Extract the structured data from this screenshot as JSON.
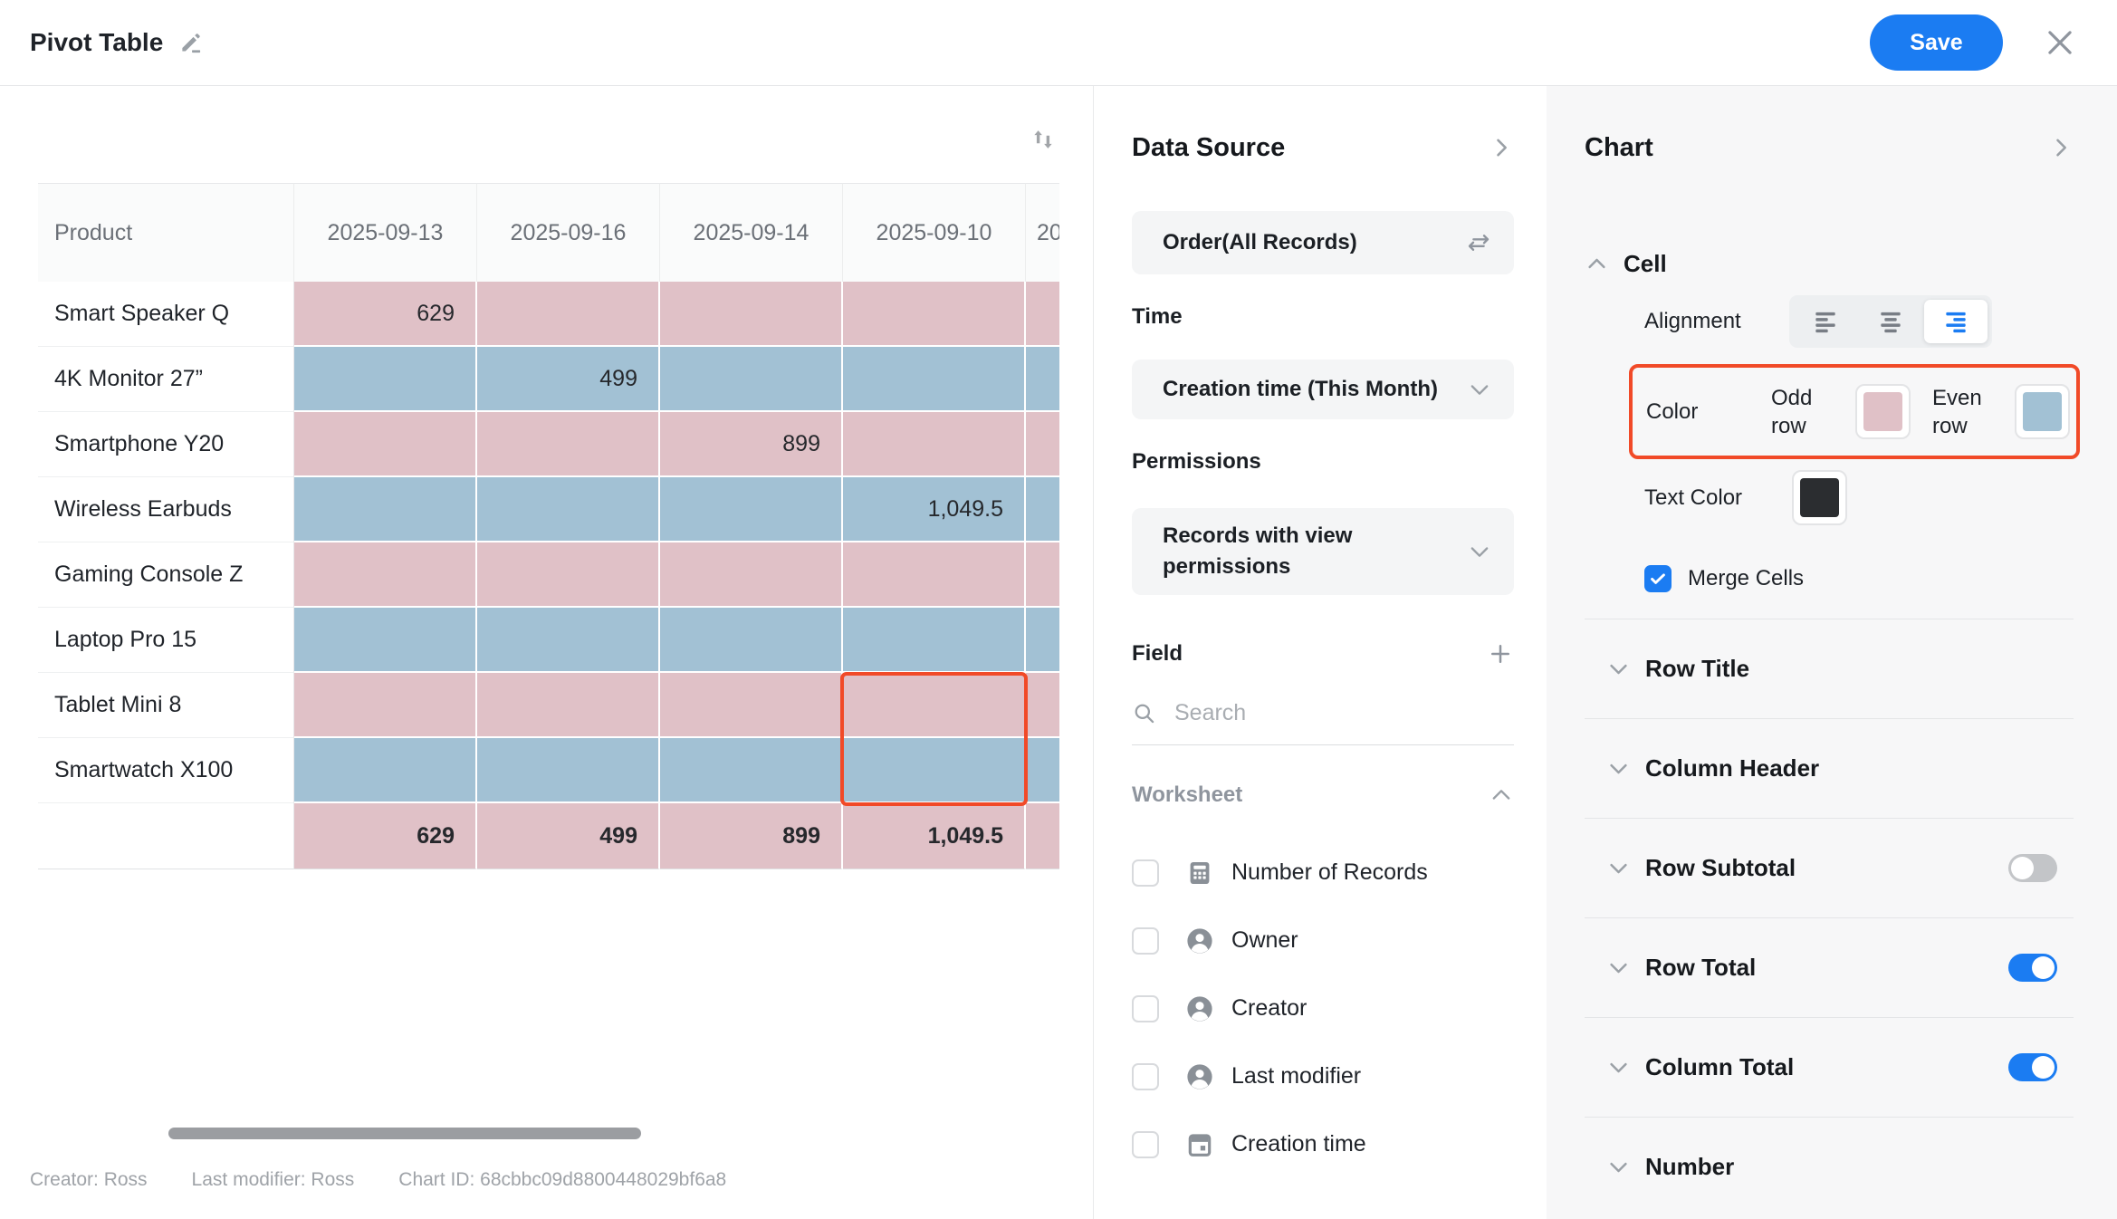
{
  "topbar": {
    "title": "Pivot Table",
    "save_label": "Save"
  },
  "canvas": {
    "table": {
      "product_header": "Product",
      "date_columns": [
        "2025-09-13",
        "2025-09-16",
        "2025-09-14",
        "2025-09-10",
        "20"
      ],
      "rows": [
        {
          "product": "Smart Speaker Q",
          "values": [
            "629",
            "",
            "",
            "",
            ""
          ]
        },
        {
          "product": "4K Monitor 27”",
          "values": [
            "",
            "499",
            "",
            "",
            ""
          ]
        },
        {
          "product": "Smartphone Y20",
          "values": [
            "",
            "",
            "899",
            "",
            ""
          ]
        },
        {
          "product": "Wireless Earbuds",
          "values": [
            "",
            "",
            "",
            "1,049.5",
            ""
          ]
        },
        {
          "product": "Gaming Console Z",
          "values": [
            "",
            "",
            "",
            "",
            ""
          ]
        },
        {
          "product": "Laptop Pro 15",
          "values": [
            "",
            "",
            "",
            "",
            ""
          ]
        },
        {
          "product": "Tablet Mini 8",
          "values": [
            "",
            "",
            "",
            "",
            ""
          ]
        },
        {
          "product": "Smartwatch X100",
          "values": [
            "",
            "",
            "",
            "",
            ""
          ]
        }
      ],
      "total_row": {
        "label": "",
        "values": [
          "629",
          "499",
          "899",
          "1,049.5",
          ""
        ]
      },
      "selected_cell": {
        "column": "2025-09-10",
        "rows": [
          "Tablet Mini 8",
          "Smartwatch X100"
        ]
      }
    },
    "footer": {
      "creator": "Creator: Ross",
      "last_modifier": "Last modifier: Ross",
      "chart_id": "Chart ID: 68cbbc09d8800448029bf6a8"
    }
  },
  "data_source_panel": {
    "title": "Data Source",
    "source": "Order(All Records)",
    "time_label": "Time",
    "time_value": "Creation time (This Month)",
    "permissions_label": "Permissions",
    "permissions_value": "Records with view permissions",
    "field_label": "Field",
    "search_placeholder": "Search",
    "worksheet_label": "Worksheet",
    "fields": [
      {
        "label": "Number of Records",
        "icon": "calculator-icon",
        "checked": false
      },
      {
        "label": "Owner",
        "icon": "person-icon",
        "checked": false
      },
      {
        "label": "Creator",
        "icon": "person-icon",
        "checked": false
      },
      {
        "label": "Last modifier",
        "icon": "person-icon",
        "checked": false
      },
      {
        "label": "Creation time",
        "icon": "calendar-icon",
        "checked": false
      }
    ]
  },
  "chart_panel": {
    "title": "Chart",
    "cell_section": {
      "label": "Cell",
      "alignment_label": "Alignment",
      "alignment_options": [
        "left",
        "center",
        "right"
      ],
      "alignment_selected": "right",
      "color_label": "Color",
      "odd_row_label": "Odd row",
      "even_row_label": "Even row",
      "text_color_label": "Text Color",
      "merge_cells_label": "Merge Cells",
      "merge_cells_checked": true
    },
    "sections": [
      {
        "label": "Row Title",
        "toggle": null
      },
      {
        "label": "Column Header",
        "toggle": null
      },
      {
        "label": "Row Subtotal",
        "toggle": false
      },
      {
        "label": "Row Total",
        "toggle": true
      },
      {
        "label": "Column Total",
        "toggle": true
      },
      {
        "label": "Number",
        "toggle": null
      }
    ]
  },
  "colors": {
    "accent": "#1b7cf2",
    "annotation": "#f14a28",
    "odd_row": "#e0c1c7",
    "even_row": "#a2c1d4",
    "text_color_swatch": "#2b2d30"
  }
}
